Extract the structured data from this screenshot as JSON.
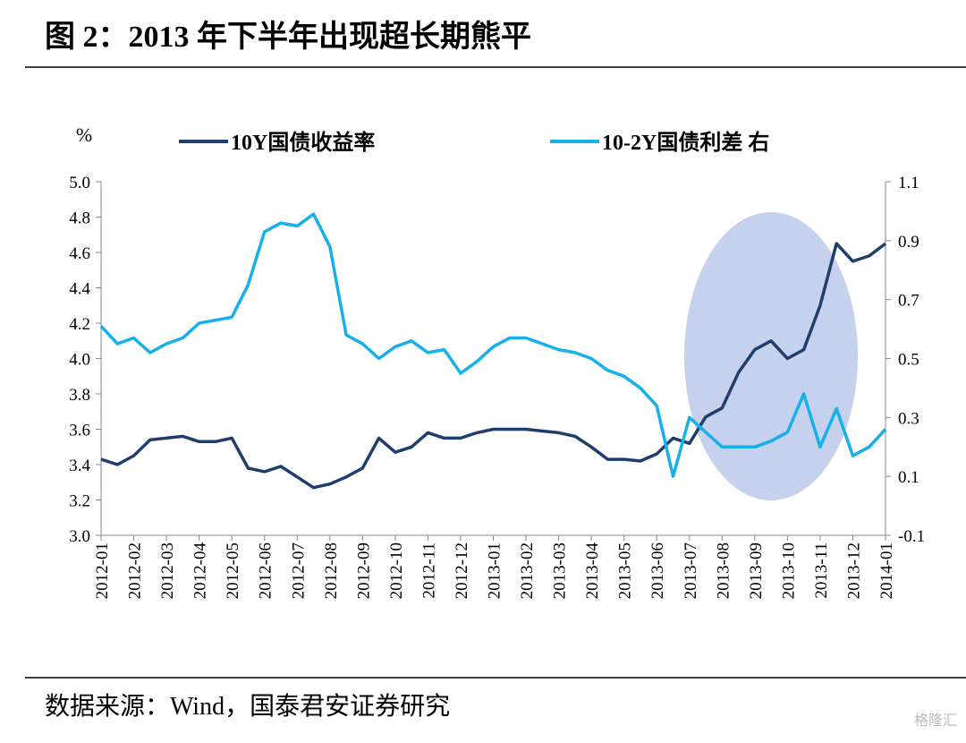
{
  "title": "图 2：2013 年下半年出现超长期熊平",
  "source": "数据来源：Wind，国泰君安证券研究",
  "watermark": "格隆汇",
  "chart_data": {
    "type": "line",
    "y_unit": "%",
    "categories": [
      "2012-01",
      null,
      "2012-02",
      null,
      "2012-03",
      null,
      "2012-04",
      null,
      "2012-05",
      null,
      "2012-06",
      null,
      "2012-07",
      null,
      "2012-08",
      null,
      "2012-09",
      null,
      "2012-10",
      null,
      "2012-11",
      null,
      "2012-12",
      null,
      "2013-01",
      null,
      "2013-02",
      null,
      "2013-03",
      null,
      "2013-04",
      null,
      "2013-05",
      null,
      "2013-06",
      null,
      "2013-07",
      null,
      "2013-08",
      null,
      "2013-09",
      null,
      "2013-10",
      null,
      "2013-11",
      null,
      "2013-12",
      null,
      "2014-01"
    ],
    "series": [
      {
        "name": "10Y国债收益率",
        "color": "#1f3e6e",
        "values": [
          3.43,
          3.4,
          3.45,
          3.54,
          3.55,
          3.56,
          3.53,
          3.53,
          3.55,
          3.38,
          3.36,
          3.39,
          3.33,
          3.27,
          3.29,
          3.33,
          3.38,
          3.55,
          3.47,
          3.5,
          3.58,
          3.55,
          3.55,
          3.58,
          3.6,
          3.6,
          3.6,
          3.59,
          3.58,
          3.56,
          3.5,
          3.43,
          3.43,
          3.42,
          3.46,
          3.55,
          3.52,
          3.67,
          3.72,
          3.92,
          4.05,
          4.1,
          4.0,
          4.05,
          4.3,
          4.65,
          4.55,
          4.58,
          4.65
        ]
      },
      {
        "name": "10-2Y国债利差 右",
        "color": "#17b0ea",
        "axis": "y2",
        "values": [
          0.61,
          0.55,
          0.57,
          0.52,
          0.55,
          0.57,
          0.62,
          0.63,
          0.64,
          0.75,
          0.93,
          0.96,
          0.95,
          0.99,
          0.88,
          0.58,
          0.55,
          0.5,
          0.54,
          0.56,
          0.52,
          0.53,
          0.45,
          0.49,
          0.54,
          0.57,
          0.57,
          0.55,
          0.53,
          0.52,
          0.5,
          0.46,
          0.44,
          0.4,
          0.34,
          0.1,
          0.3,
          0.25,
          0.2,
          0.2,
          0.2,
          0.22,
          0.25,
          0.38,
          0.2,
          0.33,
          0.17,
          0.2,
          0.26
        ]
      }
    ],
    "ylim": [
      3.0,
      5.0
    ],
    "yticks": [
      {
        "value": 3.0,
        "label": "3.0"
      },
      3.2,
      3.4,
      3.6,
      3.8,
      {
        "value": 4.0,
        "label": "4.0"
      },
      4.2,
      4.4,
      4.6,
      4.8,
      {
        "value": 5.0,
        "label": "5.0"
      }
    ],
    "y2lim": [
      -0.1,
      1.1
    ],
    "y2ticks": [
      -0.1,
      0.1,
      0.3,
      0.5,
      0.7,
      0.9,
      1.1
    ]
  }
}
